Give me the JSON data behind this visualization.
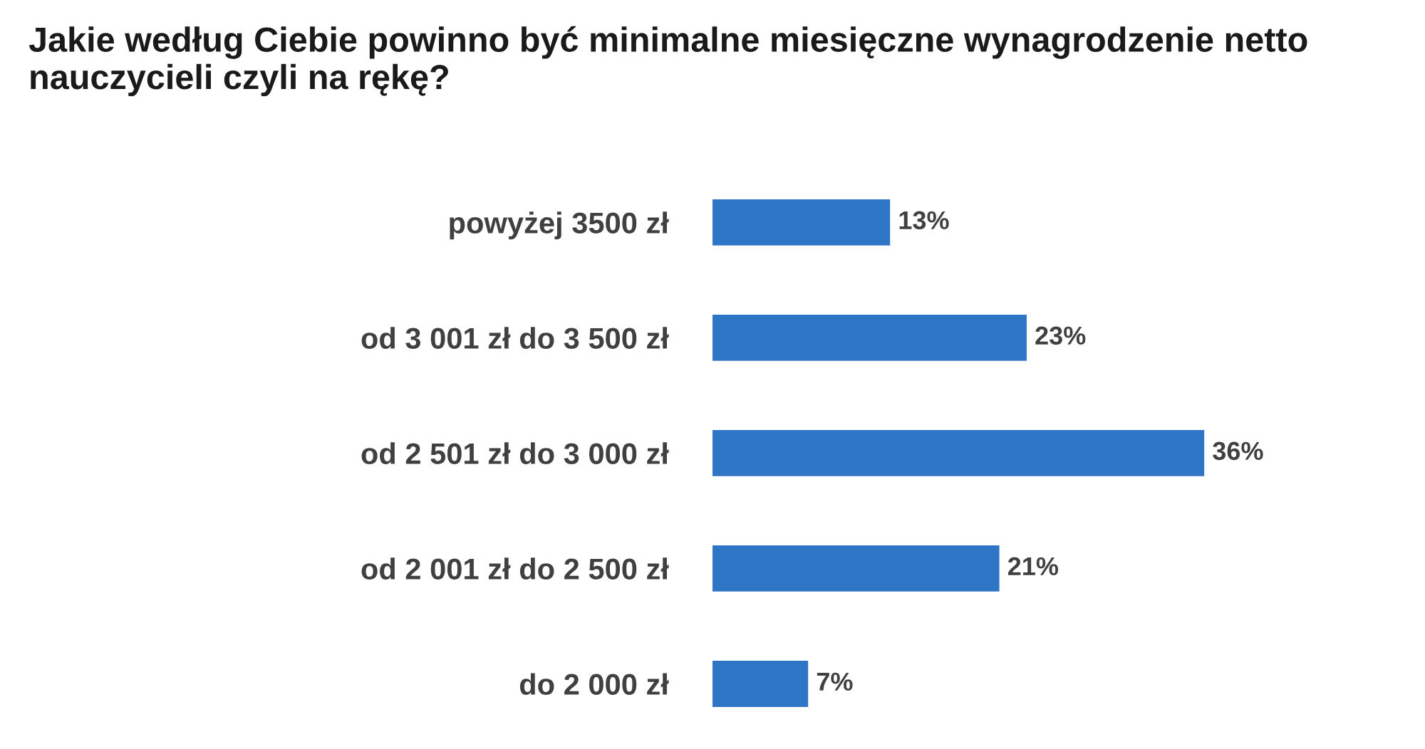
{
  "chart_data": {
    "type": "bar",
    "orientation": "horizontal",
    "title": "Jakie według Ciebie powinno być minimalne miesięczne wynagrodzenie netto nauczycieli czyli na rękę?",
    "categories": [
      "powyżej 3500 zł",
      "od 3 001 zł do 3 500 zł",
      "od 2 501 zł do 3 000 zł",
      "od 2 001 zł do 2 500 zł",
      "do 2 000 zł"
    ],
    "values": [
      13,
      23,
      36,
      21,
      7
    ],
    "value_labels": [
      "13%",
      "23%",
      "36%",
      "21%",
      "7%"
    ],
    "color": "#2e75c6"
  }
}
